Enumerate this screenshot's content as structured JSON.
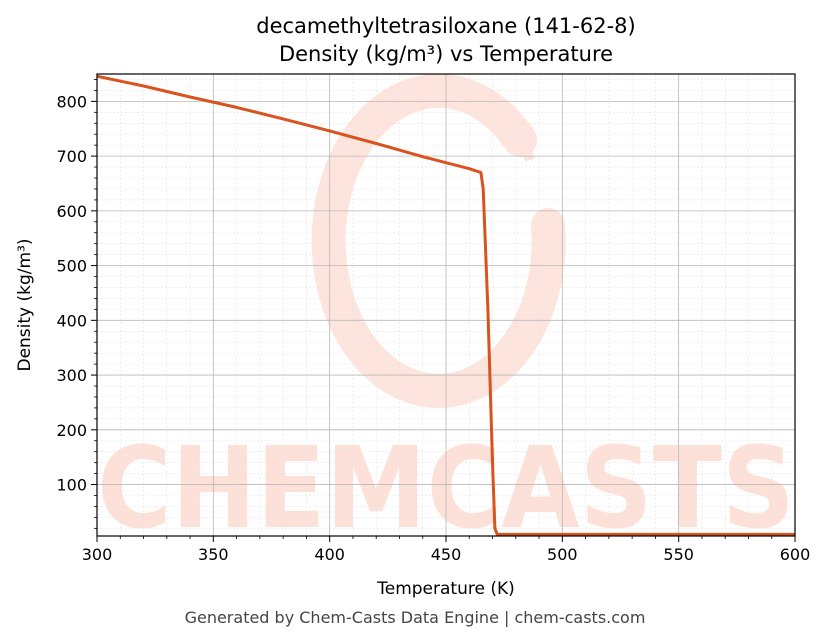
{
  "chart_data": {
    "type": "line",
    "title": "decamethyltetrasiloxane (141-62-8)",
    "subtitle": "Density (kg/m³) vs Temperature",
    "xlabel": "Temperature (K)",
    "ylabel": "Density (kg/m³)",
    "xlim": [
      300,
      600
    ],
    "ylim": [
      6,
      850
    ],
    "x_ticks": [
      "300",
      "350",
      "400",
      "450",
      "500",
      "550",
      "600"
    ],
    "y_ticks": [
      "100",
      "200",
      "300",
      "400",
      "500",
      "600",
      "700",
      "800"
    ],
    "grid": true,
    "legend": "none",
    "watermark": "CHEMCASTS",
    "series": [
      {
        "color": "#d9531e",
        "x": [
          300,
          320,
          340,
          360,
          380,
          400,
          420,
          440,
          460,
          465,
          466,
          468,
          470,
          471,
          472,
          480,
          500,
          550,
          600
        ],
        "y": [
          846,
          828,
          808,
          789,
          768,
          746,
          723,
          699,
          677,
          670,
          640,
          420,
          140,
          20,
          9,
          9,
          9,
          9,
          9
        ]
      }
    ]
  },
  "footer": "Generated by Chem-Casts Data Engine | chem-casts.com"
}
